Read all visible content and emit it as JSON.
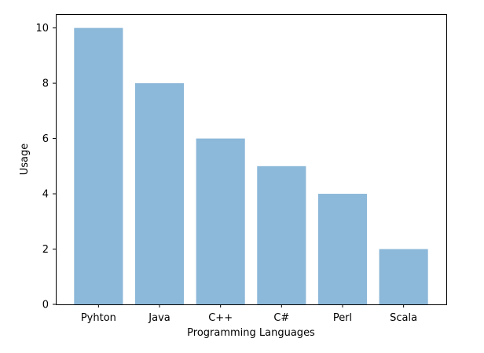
{
  "chart_data": {
    "type": "bar",
    "title": "",
    "xlabel": "Programming Languages",
    "ylabel": "Usage",
    "categories": [
      "Pyhton",
      "Java",
      "C++",
      "C#",
      "Perl",
      "Scala"
    ],
    "values": [
      10,
      8,
      6,
      5,
      4,
      2
    ],
    "ylim": [
      0,
      10.5
    ],
    "yticks": [
      "0",
      "2",
      "4",
      "6",
      "8",
      "10"
    ],
    "grid": false,
    "legend": "none",
    "bar_color": "#8cb8d9"
  }
}
